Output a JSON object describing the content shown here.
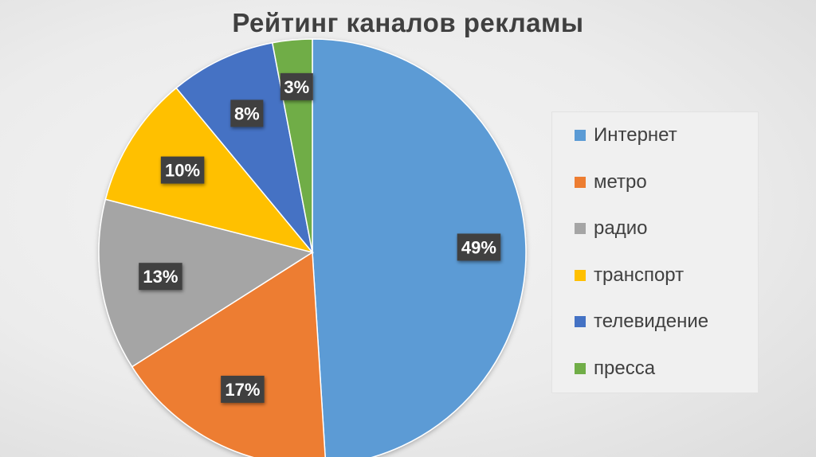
{
  "chart_data": {
    "type": "pie",
    "title": "Рейтинг каналов рекламы",
    "categories": [
      "Интернет",
      "метро",
      "радио",
      "транспорт",
      "телевидение",
      "пресса"
    ],
    "values": [
      49,
      17,
      13,
      10,
      8,
      3
    ],
    "data_labels": [
      "49%",
      "17%",
      "13%",
      "10%",
      "8%",
      "3%"
    ],
    "colors": [
      "#5B9BD5",
      "#ED7D31",
      "#A5A5A5",
      "#FFC000",
      "#4472C4",
      "#70AD47"
    ],
    "legend_position": "right"
  }
}
